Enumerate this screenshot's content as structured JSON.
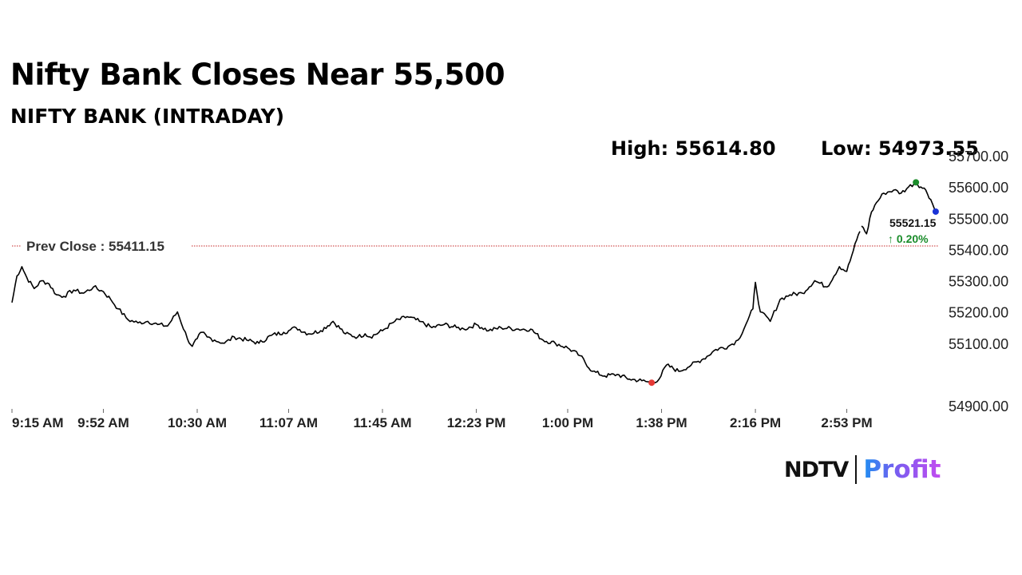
{
  "header": {
    "title": "Nifty Bank Closes Near 55,500",
    "subtitle": "NIFTY BANK (INTRADAY)",
    "high_text": "High: 55614.80",
    "low_text": "Low: 54973.55"
  },
  "logo": {
    "left": "NDTV",
    "right": "Profit"
  },
  "colors": {
    "line": "#000000",
    "prev_close_line": "#c62828",
    "high_marker": "#1a8c2a",
    "low_marker": "#e53935",
    "last_marker": "#1a33d6",
    "change_up": "#1a8c2a",
    "axis_text": "#222222"
  },
  "chart_data": {
    "type": "line",
    "title": "NIFTY BANK (INTRADAY)",
    "xlabel": "",
    "ylabel": "",
    "x_ticks": [
      "9:15 AM",
      "9:52 AM",
      "10:30 AM",
      "11:07 AM",
      "11:45 AM",
      "12:23 PM",
      "1:00 PM",
      "1:38 PM",
      "2:16 PM",
      "2:53 PM"
    ],
    "y_ticks": [
      "55700.00",
      "55600.00",
      "55500.00",
      "55400.00",
      "55300.00",
      "55200.00",
      "55100.00",
      "54900.00"
    ],
    "ylim": [
      54900,
      55700
    ],
    "grid": false,
    "high": 55614.8,
    "low": 54973.55,
    "last": 55521.15,
    "last_label": "55521.15",
    "change_label": "↑ 0.20%",
    "prev_close": 55411.15,
    "prev_close_label": "Prev Close : 55411.15",
    "series": [
      {
        "x": [
          "9:15",
          "9:17",
          "9:19",
          "9:21",
          "9:24",
          "9:27",
          "9:30",
          "9:33",
          "9:36",
          "9:40",
          "9:44",
          "9:48",
          "9:52",
          "9:55",
          "9:58",
          "10:02",
          "10:06",
          "10:10",
          "10:14",
          "10:18",
          "10:22",
          "10:26",
          "10:28",
          "10:30",
          "10:32",
          "10:34",
          "10:37",
          "10:41",
          "10:45",
          "10:50",
          "10:55",
          "11:00",
          "11:05",
          "11:07",
          "11:10",
          "11:15",
          "11:20",
          "11:25",
          "11:30",
          "11:35",
          "11:38",
          "11:40",
          "11:45",
          "11:50",
          "11:55",
          "12:00",
          "12:05",
          "12:10",
          "12:15",
          "12:18",
          "12:23",
          "12:28",
          "12:33",
          "12:40",
          "12:45",
          "12:50",
          "12:55",
          "13:00",
          "13:05",
          "13:10",
          "13:15",
          "13:20",
          "13:25",
          "13:30",
          "13:34",
          "13:37",
          "13:40",
          "13:45",
          "13:50",
          "13:55",
          "14:00",
          "14:05",
          "14:09",
          "14:13",
          "14:15",
          "14:16",
          "14:18",
          "14:22",
          "14:26",
          "14:30",
          "14:35",
          "14:40",
          "14:45",
          "14:50",
          "14:53",
          "14:55",
          "14:57",
          "14:59",
          "15:01",
          "15:03",
          "15:05",
          "15:08",
          "15:12",
          "15:15",
          "15:18",
          "15:21",
          "15:23",
          "15:25",
          "15:27",
          "15:29"
        ],
        "y": [
          55230,
          55315,
          55345,
          55310,
          55275,
          55300,
          55290,
          55255,
          55250,
          55270,
          55260,
          55280,
          55265,
          55240,
          55210,
          55175,
          55165,
          55170,
          55160,
          55155,
          55200,
          55115,
          55090,
          55115,
          55135,
          55120,
          55110,
          55100,
          55120,
          55110,
          55100,
          55125,
          55135,
          55140,
          55150,
          55130,
          55140,
          55170,
          55130,
          55120,
          55130,
          55120,
          55140,
          55170,
          55185,
          55170,
          55150,
          55160,
          55150,
          55145,
          55160,
          55140,
          55150,
          55145,
          55145,
          55110,
          55100,
          55085,
          55060,
          55010,
          54995,
          55000,
          54985,
          54980,
          54973.55,
          54985,
          55030,
          55010,
          55030,
          55050,
          55080,
          55090,
          55110,
          55175,
          55210,
          55295,
          55200,
          55170,
          55240,
          55255,
          55260,
          55300,
          55280,
          55345,
          55330,
          55380,
          55430,
          55475,
          55450,
          55520,
          55550,
          55580,
          55590,
          55580,
          55600,
          55614.8,
          55600,
          55590,
          55560,
          55521.15
        ]
      }
    ]
  }
}
